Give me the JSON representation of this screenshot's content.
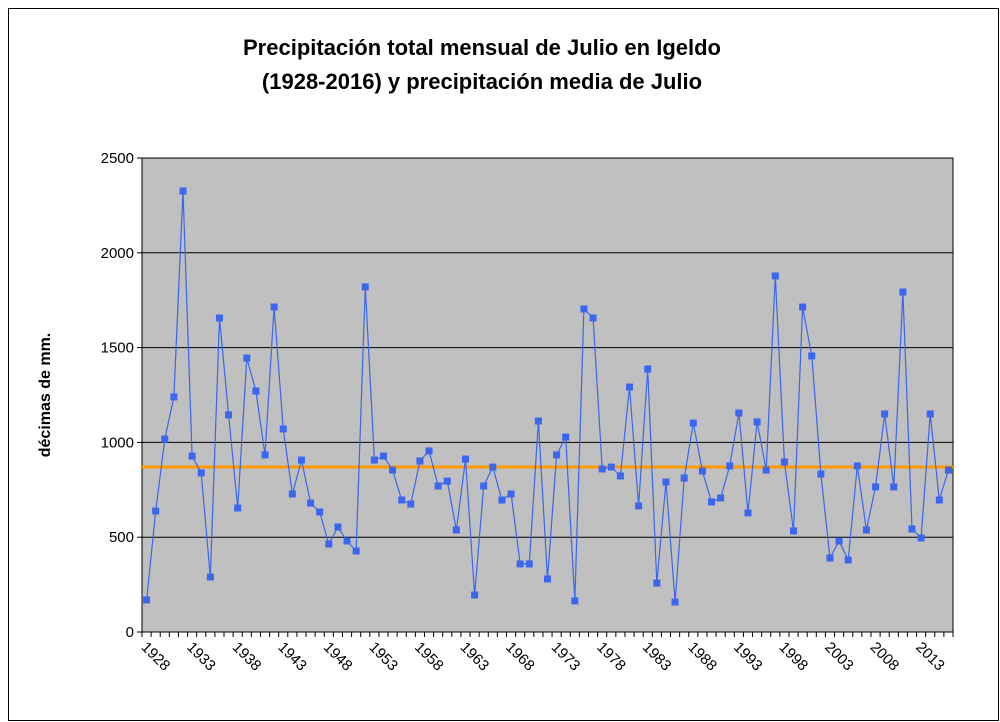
{
  "chart_data": {
    "type": "line",
    "title": [
      "Precipitación total mensual de Julio en Igeldo",
      "(1928-2016) y precipitación media de Julio"
    ],
    "y_label": "décimas de mm.",
    "categories": [
      "1928",
      null,
      null,
      null,
      null,
      "1933",
      null,
      null,
      null,
      null,
      "1938",
      null,
      null,
      null,
      null,
      "1943",
      null,
      null,
      null,
      null,
      "1948",
      null,
      null,
      null,
      null,
      "1953",
      null,
      null,
      null,
      null,
      "1958",
      null,
      null,
      null,
      null,
      "1963",
      null,
      null,
      null,
      null,
      "1968",
      null,
      null,
      null,
      null,
      "1973",
      null,
      null,
      null,
      null,
      "1978",
      null,
      null,
      null,
      null,
      "1983",
      null,
      null,
      null,
      null,
      "1988",
      null,
      null,
      null,
      null,
      "1993",
      null,
      null,
      null,
      null,
      "1998",
      null,
      null,
      null,
      null,
      "2003",
      null,
      null,
      null,
      null,
      "2008",
      null,
      null,
      null,
      null,
      "2013",
      null,
      null,
      null
    ],
    "values": [
      169,
      638,
      1018,
      1240,
      2326,
      928,
      839,
      290,
      1656,
      1145,
      654,
      1445,
      1271,
      934,
      1714,
      1071,
      728,
      907,
      680,
      633,
      464,
      554,
      480,
      427,
      1820,
      907,
      928,
      854,
      696,
      675,
      902,
      955,
      770,
      796,
      538,
      912,
      195,
      770,
      870,
      696,
      728,
      359,
      359,
      1113,
      280,
      934,
      1028,
      164,
      1704,
      1656,
      860,
      870,
      823,
      1292,
      665,
      1387,
      258,
      791,
      158,
      812,
      1102,
      849,
      686,
      707,
      876,
      1155,
      628,
      1108,
      854,
      1878,
      897,
      533,
      1714,
      1456,
      833,
      390,
      480,
      380,
      876,
      538,
      765,
      1150,
      765,
      1793,
      543,
      496,
      1150,
      696,
      854
    ],
    "color": "#3a66f0",
    "mean": {
      "value": 870,
      "color": "#ff9900"
    },
    "ylim": [
      0,
      2500
    ],
    "yticks": [
      0,
      500,
      1000,
      1500,
      2000,
      2500
    ],
    "grid": true,
    "plot_background": "#c0c0c0"
  }
}
